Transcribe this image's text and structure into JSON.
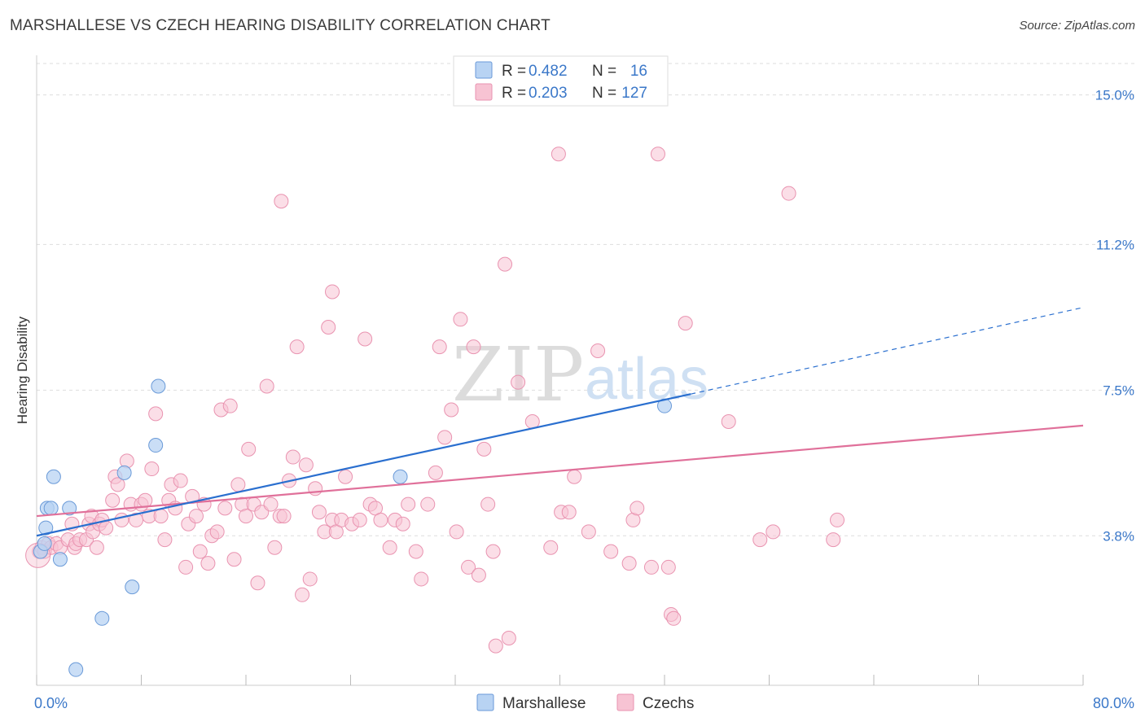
{
  "title": "MARSHALLESE VS CZECH HEARING DISABILITY CORRELATION CHART",
  "source": "Source: ZipAtlas.com",
  "watermark": {
    "zip": "ZIP",
    "atlas": "atlas"
  },
  "legend": {
    "r_label": "R =",
    "n_label": "N =",
    "rows": [
      {
        "r": "0.482",
        "n": "16",
        "color": "#b8d3f3"
      },
      {
        "r": "0.203",
        "n": "127",
        "color": "#f7c3d3"
      }
    ]
  },
  "colors": {
    "marshallese_point": "#b8d3f3",
    "marshallese_edge": "#6a9ad8",
    "marshallese_line": "#2a6fcf",
    "czech_point": "#f7c3d3",
    "czech_edge": "#e993b0",
    "czech_line": "#e0709a",
    "tick_label": "#3b78c9",
    "grid": "#dddddd"
  },
  "chart_data": {
    "type": "scatter",
    "title": "MARSHALLESE VS CZECH HEARING DISABILITY CORRELATION CHART",
    "xlabel": "",
    "ylabel": "Hearing Disability",
    "xlim": [
      0,
      80
    ],
    "ylim": [
      0,
      15.8
    ],
    "x_ticks": [
      "0.0%",
      "80.0%"
    ],
    "y_ticks": [
      {
        "value": 3.8,
        "label": "3.8%"
      },
      {
        "value": 7.5,
        "label": "7.5%"
      },
      {
        "value": 11.2,
        "label": "11.2%"
      },
      {
        "value": 15.0,
        "label": "15.0%"
      }
    ],
    "grid": true,
    "legend_position": "top-center",
    "series": [
      {
        "name": "Marshallese",
        "r": 0.482,
        "n": 16,
        "points": [
          [
            0.3,
            3.4
          ],
          [
            0.6,
            3.6
          ],
          [
            0.7,
            4.0
          ],
          [
            0.8,
            4.5
          ],
          [
            1.1,
            4.5
          ],
          [
            1.3,
            5.3
          ],
          [
            1.8,
            3.2
          ],
          [
            2.5,
            4.5
          ],
          [
            5.0,
            1.7
          ],
          [
            6.7,
            5.4
          ],
          [
            7.3,
            2.5
          ],
          [
            9.1,
            6.1
          ],
          [
            9.3,
            7.6
          ],
          [
            27.8,
            5.3
          ],
          [
            48.0,
            7.1
          ],
          [
            3.0,
            0.4
          ]
        ],
        "trend": {
          "x0": 0,
          "y0": 3.8,
          "x1": 50,
          "y1": 7.4,
          "x_dash_end": 80,
          "y_dash_end": 9.6
        }
      },
      {
        "name": "Czechs",
        "r": 0.203,
        "n": 127,
        "points": [
          [
            0.2,
            3.4
          ],
          [
            0.4,
            3.5
          ],
          [
            0.6,
            3.4
          ],
          [
            0.9,
            3.6
          ],
          [
            1.1,
            3.5
          ],
          [
            1.5,
            3.6
          ],
          [
            1.8,
            3.5
          ],
          [
            2.4,
            3.7
          ],
          [
            2.7,
            4.1
          ],
          [
            2.9,
            3.5
          ],
          [
            3.0,
            3.6
          ],
          [
            3.3,
            3.7
          ],
          [
            3.8,
            3.7
          ],
          [
            4.0,
            4.1
          ],
          [
            4.2,
            4.3
          ],
          [
            4.3,
            3.9
          ],
          [
            4.6,
            3.5
          ],
          [
            4.8,
            4.1
          ],
          [
            5.0,
            4.2
          ],
          [
            5.3,
            4.0
          ],
          [
            5.8,
            4.7
          ],
          [
            6.0,
            5.3
          ],
          [
            6.2,
            5.1
          ],
          [
            6.5,
            4.2
          ],
          [
            6.9,
            5.7
          ],
          [
            7.2,
            4.6
          ],
          [
            7.6,
            4.2
          ],
          [
            8.0,
            4.6
          ],
          [
            8.3,
            4.7
          ],
          [
            8.6,
            4.3
          ],
          [
            8.8,
            5.5
          ],
          [
            9.1,
            6.9
          ],
          [
            9.5,
            4.3
          ],
          [
            9.8,
            3.7
          ],
          [
            10.1,
            4.7
          ],
          [
            10.3,
            5.1
          ],
          [
            10.6,
            4.5
          ],
          [
            11.0,
            5.2
          ],
          [
            11.4,
            3.0
          ],
          [
            11.6,
            4.1
          ],
          [
            11.9,
            4.8
          ],
          [
            12.2,
            4.3
          ],
          [
            12.5,
            3.4
          ],
          [
            12.8,
            4.6
          ],
          [
            13.1,
            3.1
          ],
          [
            13.4,
            3.8
          ],
          [
            13.8,
            3.9
          ],
          [
            14.1,
            7.0
          ],
          [
            14.4,
            4.5
          ],
          [
            14.8,
            7.1
          ],
          [
            15.1,
            3.2
          ],
          [
            15.4,
            5.1
          ],
          [
            15.7,
            4.6
          ],
          [
            16.0,
            4.3
          ],
          [
            16.2,
            6.0
          ],
          [
            16.6,
            4.6
          ],
          [
            16.9,
            2.6
          ],
          [
            17.2,
            4.4
          ],
          [
            17.6,
            7.6
          ],
          [
            17.9,
            4.6
          ],
          [
            18.2,
            3.5
          ],
          [
            18.6,
            4.3
          ],
          [
            18.9,
            4.3
          ],
          [
            19.3,
            5.2
          ],
          [
            19.6,
            5.8
          ],
          [
            19.9,
            8.6
          ],
          [
            20.3,
            2.3
          ],
          [
            20.6,
            5.6
          ],
          [
            20.9,
            2.7
          ],
          [
            21.3,
            5.0
          ],
          [
            21.6,
            4.4
          ],
          [
            22.0,
            3.9
          ],
          [
            22.3,
            9.1
          ],
          [
            22.6,
            4.2
          ],
          [
            22.9,
            3.9
          ],
          [
            23.3,
            4.2
          ],
          [
            23.6,
            5.3
          ],
          [
            24.1,
            4.1
          ],
          [
            24.7,
            4.2
          ],
          [
            25.1,
            8.8
          ],
          [
            25.5,
            4.6
          ],
          [
            25.9,
            4.5
          ],
          [
            26.3,
            4.2
          ],
          [
            27.0,
            3.5
          ],
          [
            27.4,
            4.2
          ],
          [
            28.0,
            4.1
          ],
          [
            28.4,
            4.6
          ],
          [
            29.0,
            3.4
          ],
          [
            29.4,
            2.7
          ],
          [
            29.9,
            4.6
          ],
          [
            30.5,
            5.4
          ],
          [
            30.8,
            8.6
          ],
          [
            31.2,
            6.3
          ],
          [
            31.7,
            7.0
          ],
          [
            32.1,
            3.9
          ],
          [
            32.4,
            9.3
          ],
          [
            33.0,
            3.0
          ],
          [
            33.4,
            8.6
          ],
          [
            33.8,
            2.8
          ],
          [
            34.2,
            6.0
          ],
          [
            34.5,
            4.6
          ],
          [
            34.9,
            3.4
          ],
          [
            35.1,
            1.0
          ],
          [
            36.1,
            1.2
          ],
          [
            36.8,
            7.7
          ],
          [
            37.9,
            6.7
          ],
          [
            39.3,
            3.5
          ],
          [
            39.9,
            13.5
          ],
          [
            40.1,
            4.4
          ],
          [
            40.7,
            4.4
          ],
          [
            41.1,
            5.3
          ],
          [
            42.2,
            3.9
          ],
          [
            42.9,
            8.5
          ],
          [
            43.9,
            3.4
          ],
          [
            45.3,
            3.1
          ],
          [
            45.6,
            4.2
          ],
          [
            45.9,
            4.5
          ],
          [
            47.0,
            3.0
          ],
          [
            48.3,
            3.0
          ],
          [
            48.5,
            1.8
          ],
          [
            48.7,
            1.7
          ],
          [
            47.5,
            13.5
          ],
          [
            49.6,
            9.2
          ],
          [
            52.9,
            6.7
          ],
          [
            55.3,
            3.7
          ],
          [
            56.3,
            3.9
          ],
          [
            57.5,
            12.5
          ],
          [
            60.9,
            3.7
          ],
          [
            61.2,
            4.2
          ],
          [
            18.7,
            12.3
          ],
          [
            22.6,
            10.0
          ],
          [
            35.8,
            10.7
          ]
        ],
        "trend": {
          "x0": 0,
          "y0": 4.3,
          "x1": 80,
          "y1": 6.6
        }
      }
    ]
  },
  "bottom_legend": [
    {
      "label": "Marshallese",
      "color": "#b8d3f3"
    },
    {
      "label": "Czechs",
      "color": "#f7c3d3"
    }
  ]
}
